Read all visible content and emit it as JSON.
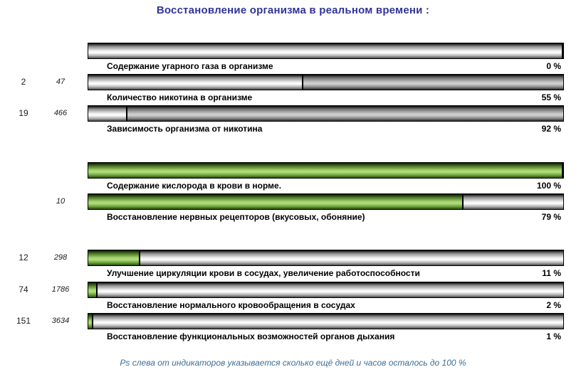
{
  "title": "Восстановление организма в реальном времени :",
  "footer": "Ps слева от индикаторов указывается сколько ещё дней и часов осталось до 100 %",
  "colors": {
    "title_text": "#333399",
    "footer_text": "#3d6e96",
    "green_fill_mid": "#a7d572",
    "gray_fill_mid": "#c6c6c6",
    "bar_border": "#000000"
  },
  "left_columns_meaning": "days and hours remaining until 100 %",
  "rows": [
    {
      "days": "",
      "hours": "",
      "label": "Содержание угарного газа в организме",
      "percent": "0 %",
      "fill_pct": 0,
      "fill_color": "gray",
      "fill_side": "right"
    },
    {
      "days": "2",
      "hours": "47",
      "label": "Количество никотина в организме",
      "percent": "55 %",
      "fill_pct": 55,
      "fill_color": "gray",
      "fill_side": "right"
    },
    {
      "days": "19",
      "hours": "466",
      "label": "Зависимость организма от никотина",
      "percent": "92 %",
      "fill_pct": 92,
      "fill_color": "gray",
      "fill_side": "right"
    },
    {
      "days": "",
      "hours": "",
      "label": "Содержание кислорода в крови в норме.",
      "percent": "100 %",
      "fill_pct": 100,
      "fill_color": "green",
      "fill_side": "left"
    },
    {
      "days": "",
      "hours": "10",
      "label": "Восстановление нервных рецепторов (вкусовых, обоняние)",
      "percent": "79 %",
      "fill_pct": 79,
      "fill_color": "green",
      "fill_side": "left"
    },
    {
      "days": "12",
      "hours": "298",
      "label": "Улучшение циркуляции крови в сосудах, увеличение работоспособности",
      "percent": "11 %",
      "fill_pct": 11,
      "fill_color": "green",
      "fill_side": "left"
    },
    {
      "days": "74",
      "hours": "1786",
      "label": "Восстановление нормального кровообращения в сосудах",
      "percent": "2 %",
      "fill_pct": 2,
      "fill_color": "green",
      "fill_side": "left"
    },
    {
      "days": "151",
      "hours": "3634",
      "label": "Восстановление функциональных возможностей органов дыхания",
      "percent": "1 %",
      "fill_pct": 1,
      "fill_color": "green",
      "fill_side": "left"
    }
  ]
}
